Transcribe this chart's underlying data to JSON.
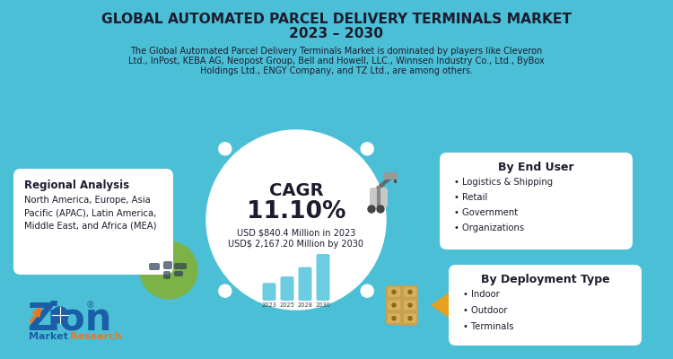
{
  "title_line1": "GLOBAL AUTOMATED PARCEL DELIVERY TERMINALS MARKET",
  "title_line2": "2023 – 2030",
  "subtitle_line1": "The Global Automated Parcel Delivery Terminals Market is dominated by players like Cleveron",
  "subtitle_line2": "Ltd., InPost, KEBA AG, Neopost Group, Bell and Howell, LLC., Winnsen Industry Co., Ltd., ByBox",
  "subtitle_line3": "Holdings Ltd., ENGY Company, and TZ Ltd., are among others.",
  "bg_color": "#4BBFD6",
  "dark_text": "#1C1C2E",
  "white": "#FFFFFF",
  "cagr_label": "CAGR",
  "cagr_value": "11.10%",
  "market_2023": "USD $840.4 Million in 2023",
  "market_2030": "USD$ 2,167.20 Million by 2030",
  "regional_title": "Regional Analysis",
  "regional_text_lines": [
    "North America, Europe, Asia",
    "Pacific (APAC), Latin America,",
    "Middle East, and Africa (MEA)"
  ],
  "end_user_title": "By End User",
  "end_user_items": [
    "Logistics & Shipping",
    "Retail",
    "Government",
    "Organizations"
  ],
  "deployment_title": "By Deployment Type",
  "deployment_items": [
    "Indoor",
    "Outdoor",
    "Terminals"
  ],
  "bar_values": [
    0.38,
    0.52,
    0.72,
    1.0
  ],
  "bar_color": "#5BC8DC",
  "bar_years": [
    "2023",
    "2025",
    "2028",
    "2030"
  ],
  "green_circle_color": "#7DB346",
  "teal_arrow_color": "#4BBFD6",
  "orange_arrow_color": "#E8A020",
  "dashed_ring_color": "#B0B0B0",
  "logo_blue": "#1A5EA8",
  "logo_orange": "#E87820",
  "box_shadow": "#D0D0D0"
}
